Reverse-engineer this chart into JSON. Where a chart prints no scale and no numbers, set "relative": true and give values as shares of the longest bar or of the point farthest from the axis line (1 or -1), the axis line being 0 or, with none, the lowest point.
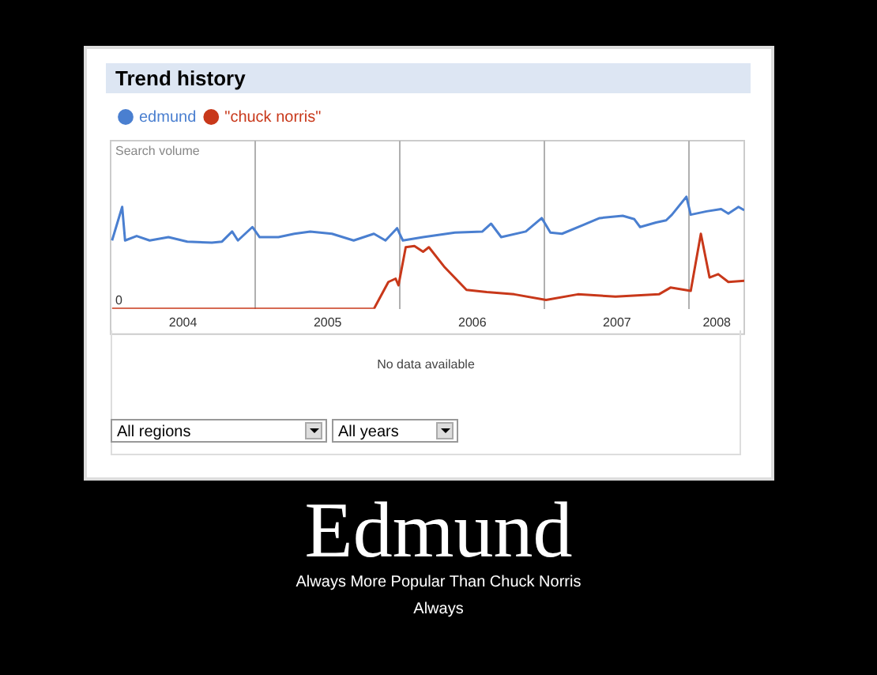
{
  "chart_data": {
    "type": "line",
    "title": "Trend history",
    "ylabel": "Search volume",
    "relative": true,
    "legend": "top left",
    "grid": "x",
    "marker": "none",
    "line_style": "solid",
    "xlim": [
      2004,
      2008.38
    ],
    "xticks": [
      {
        "value": 2004.5,
        "label": "2004"
      },
      {
        "value": 2005,
        "label": null
      },
      {
        "value": 2005.5,
        "label": "2005"
      },
      {
        "value": 2006,
        "label": null
      },
      {
        "value": 2006.5,
        "label": "2006"
      },
      {
        "value": 2007,
        "label": null
      },
      {
        "value": 2007.5,
        "label": "2007"
      },
      {
        "value": 2008,
        "label": null
      },
      {
        "value": 2008.19,
        "label": "2008"
      }
    ],
    "series": [
      {
        "name": "edmund",
        "color": "#4a7fd0",
        "x": [
          2004.01,
          2004.08,
          2004.1,
          2004.18,
          2004.27,
          2004.4,
          2004.53,
          2004.7,
          2004.77,
          2004.84,
          2004.88,
          2004.98,
          2005.03,
          2005.16,
          2005.27,
          2005.38,
          2005.53,
          2005.68,
          2005.82,
          2005.9,
          2005.98,
          2006.02,
          2006.16,
          2006.38,
          2006.57,
          2006.63,
          2006.7,
          2006.87,
          2006.98,
          2007.04,
          2007.12,
          2007.27,
          2007.38,
          2007.54,
          2007.62,
          2007.66,
          2007.77,
          2007.84,
          2007.88,
          2007.98,
          2008.01,
          2008.12,
          2008.22,
          2008.27,
          2008.34,
          2008.38
        ],
        "values": [
          0.61,
          0.91,
          0.61,
          0.65,
          0.61,
          0.64,
          0.6,
          0.59,
          0.6,
          0.69,
          0.61,
          0.73,
          0.64,
          0.64,
          0.67,
          0.69,
          0.67,
          0.61,
          0.67,
          0.61,
          0.72,
          0.61,
          0.64,
          0.68,
          0.69,
          0.76,
          0.64,
          0.69,
          0.81,
          0.68,
          0.67,
          0.75,
          0.81,
          0.83,
          0.8,
          0.73,
          0.77,
          0.79,
          0.84,
          1,
          0.84,
          0.87,
          0.89,
          0.85,
          0.91,
          0.88
        ]
      },
      {
        "name": "\"chuck norris\"",
        "color": "#c8381a",
        "x": [
          2004.01,
          2005.82,
          2005.92,
          2005.97,
          2005.99,
          2006.04,
          2006.1,
          2006.16,
          2006.2,
          2006.31,
          2006.46,
          2006.6,
          2006.79,
          2007.01,
          2007.23,
          2007.49,
          2007.79,
          2007.87,
          2008.01,
          2008.08,
          2008.14,
          2008.2,
          2008.27,
          2008.38
        ],
        "values": [
          0,
          0,
          0.24,
          0.27,
          0.21,
          0.55,
          0.56,
          0.51,
          0.55,
          0.37,
          0.17,
          0.15,
          0.13,
          0.08,
          0.13,
          0.11,
          0.13,
          0.19,
          0.16,
          0.67,
          0.28,
          0.31,
          0.24,
          0.25
        ]
      }
    ],
    "annotations": [
      {
        "text": "0",
        "x": 2004,
        "y": 0
      },
      "No data available",
      "All regions",
      "All years",
      "Edmund",
      "Always More Popular Than Chuck Norris",
      "Always"
    ]
  }
}
